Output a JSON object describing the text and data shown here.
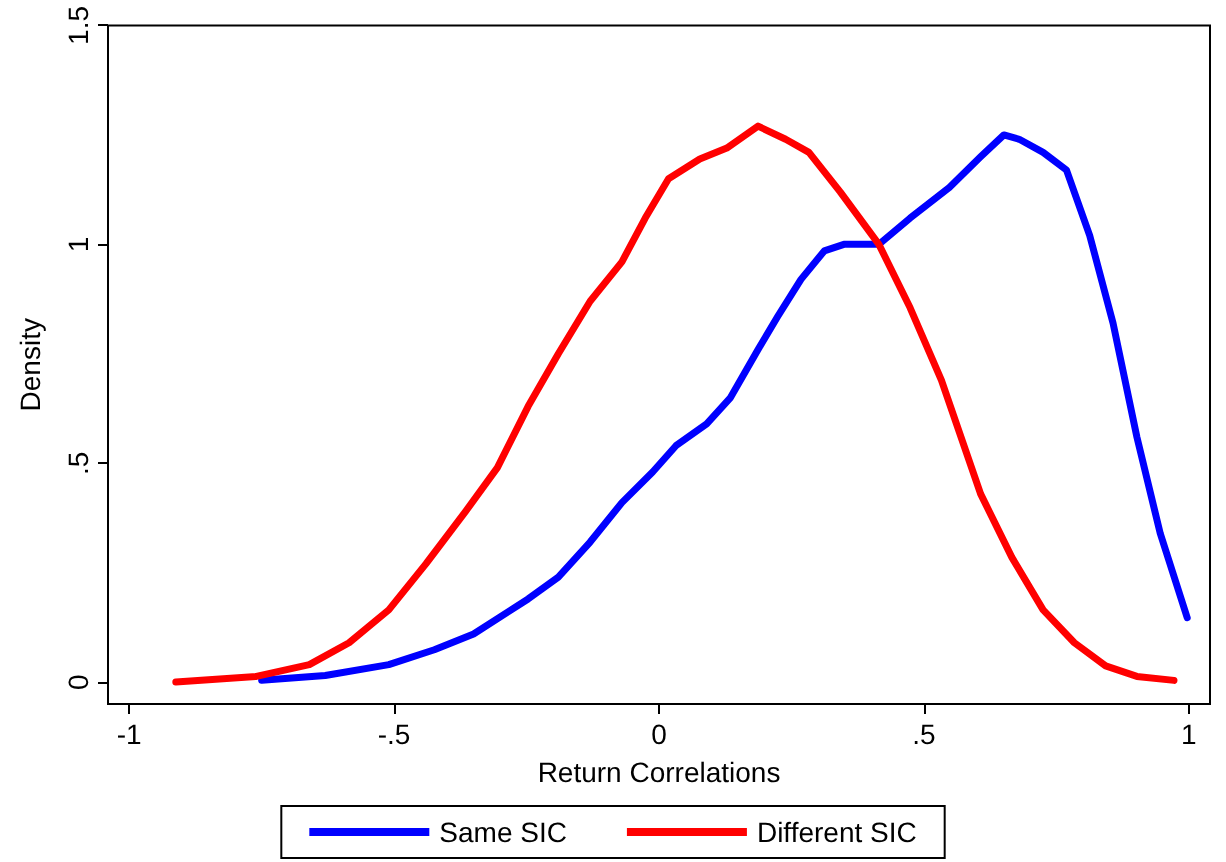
{
  "chart_data": {
    "type": "line",
    "xlabel": "Return Correlations",
    "ylabel": "Density",
    "xlim": [
      -1.04,
      1.04
    ],
    "xticks": [
      {
        "value": -1,
        "label": "-1"
      },
      {
        "value": -0.5,
        "label": "-.5"
      },
      0,
      {
        "value": 0.5,
        "label": ".5"
      },
      1
    ],
    "ylim": [
      -0.05,
      1.5
    ],
    "yticks": [
      0,
      {
        "value": 0.5,
        "label": ".5"
      },
      1,
      1.5
    ],
    "grid": false,
    "legend": "bottom",
    "marker": "none",
    "line_style": "solid",
    "series": [
      {
        "name": "Same SIC",
        "color": "#0000ff",
        "x": [
          -0.75,
          -0.63,
          -0.51,
          -0.424,
          -0.35,
          -0.247,
          -0.19,
          -0.13,
          -0.07,
          -0.012,
          0.032,
          0.09,
          0.135,
          0.187,
          0.224,
          0.268,
          0.312,
          0.349,
          0.415,
          0.474,
          0.548,
          0.607,
          0.651,
          0.68,
          0.725,
          0.769,
          0.813,
          0.857,
          0.902,
          0.946,
          0.997
        ],
        "values": [
          0.004,
          0.015,
          0.04,
          0.074,
          0.11,
          0.19,
          0.24,
          0.32,
          0.41,
          0.48,
          0.54,
          0.59,
          0.65,
          0.76,
          0.835,
          0.92,
          0.985,
          1.0,
          1.0,
          1.06,
          1.13,
          1.2,
          1.25,
          1.24,
          1.21,
          1.17,
          1.02,
          0.82,
          0.56,
          0.34,
          0.147
        ]
      },
      {
        "name": "Different SIC",
        "color": "#ff0000",
        "x": [
          -0.912,
          -0.76,
          -0.66,
          -0.585,
          -0.51,
          -0.44,
          -0.365,
          -0.305,
          -0.247,
          -0.19,
          -0.13,
          -0.07,
          -0.026,
          0.018,
          0.077,
          0.128,
          0.187,
          0.239,
          0.283,
          0.342,
          0.415,
          0.474,
          0.533,
          0.607,
          0.666,
          0.725,
          0.784,
          0.843,
          0.902,
          0.972
        ],
        "values": [
          0,
          0.013,
          0.04,
          0.09,
          0.165,
          0.27,
          0.39,
          0.49,
          0.63,
          0.75,
          0.87,
          0.96,
          1.06,
          1.15,
          1.195,
          1.22,
          1.27,
          1.24,
          1.21,
          1.12,
          1.0,
          0.855,
          0.69,
          0.43,
          0.285,
          0.165,
          0.09,
          0.037,
          0.013,
          0.004
        ]
      }
    ]
  }
}
